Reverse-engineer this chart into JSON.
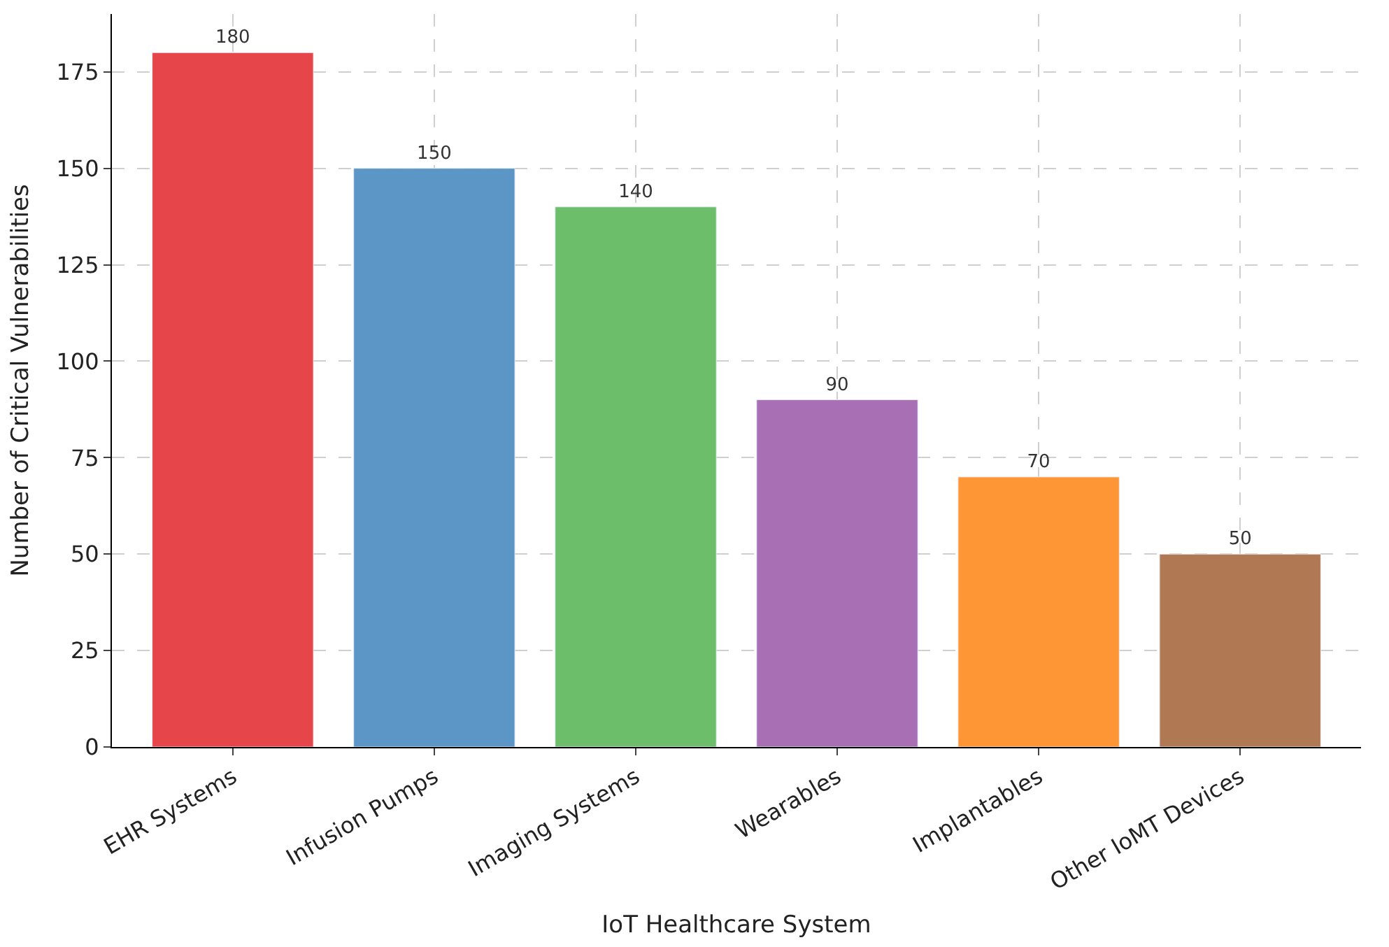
{
  "chart_data": {
    "type": "bar",
    "xlabel": "IoT Healthcare System",
    "ylabel": "Number of Critical Vulnerabilities",
    "categories": [
      "EHR Systems",
      "Infusion Pumps",
      "Imaging Systems",
      "Wearables",
      "Implantables",
      "Other IoMT Devices"
    ],
    "values": [
      180,
      150,
      140,
      90,
      70,
      50
    ],
    "colors": [
      "#e6454a",
      "#5b96c6",
      "#6dbe6b",
      "#a86fb5",
      "#fe9636",
      "#b07853"
    ],
    "ylim": [
      0,
      190
    ],
    "yticks": [
      0,
      25,
      50,
      75,
      100,
      125,
      150,
      175
    ],
    "grid": true,
    "data_labels": true
  }
}
